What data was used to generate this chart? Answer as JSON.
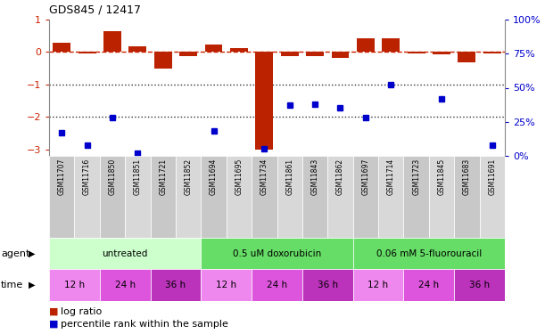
{
  "title": "GDS845 / 12417",
  "samples": [
    "GSM11707",
    "GSM11716",
    "GSM11850",
    "GSM11851",
    "GSM11721",
    "GSM11852",
    "GSM11694",
    "GSM11695",
    "GSM11734",
    "GSM11861",
    "GSM11843",
    "GSM11862",
    "GSM11697",
    "GSM11714",
    "GSM11723",
    "GSM11845",
    "GSM11683",
    "GSM11691"
  ],
  "log_ratio": [
    0.3,
    -0.05,
    0.65,
    0.18,
    -0.5,
    -0.12,
    0.22,
    0.12,
    -3.0,
    -0.12,
    -0.12,
    -0.18,
    0.42,
    0.42,
    -0.05,
    -0.08,
    -0.32,
    -0.04
  ],
  "percentile": [
    17,
    8,
    28,
    2,
    null,
    null,
    18,
    null,
    5,
    37,
    38,
    35,
    28,
    52,
    null,
    42,
    null,
    8
  ],
  "ylim_left": [
    -3.2,
    1.0
  ],
  "bar_color": "#bb2200",
  "dot_color": "#0000cc",
  "bar_width": 0.7,
  "dashed_line_color": "#cc2200",
  "dotted_line_color": "#333333",
  "right_axis_color": "#0000cc",
  "left_axis_color": "#cc2200",
  "agent_colors": [
    "#ccffcc",
    "#66dd66",
    "#66dd66"
  ],
  "agent_labels": [
    "untreated",
    "0.5 uM doxorubicin",
    "0.06 mM 5-fluorouracil"
  ],
  "time_colors": [
    "#ee88ee",
    "#dd55dd",
    "#bb33bb"
  ],
  "time_labels": [
    "12 h",
    "24 h",
    "36 h"
  ],
  "label_col_colors": [
    "#c8c8c8",
    "#d8d8d8"
  ],
  "background_color": "#ffffff"
}
